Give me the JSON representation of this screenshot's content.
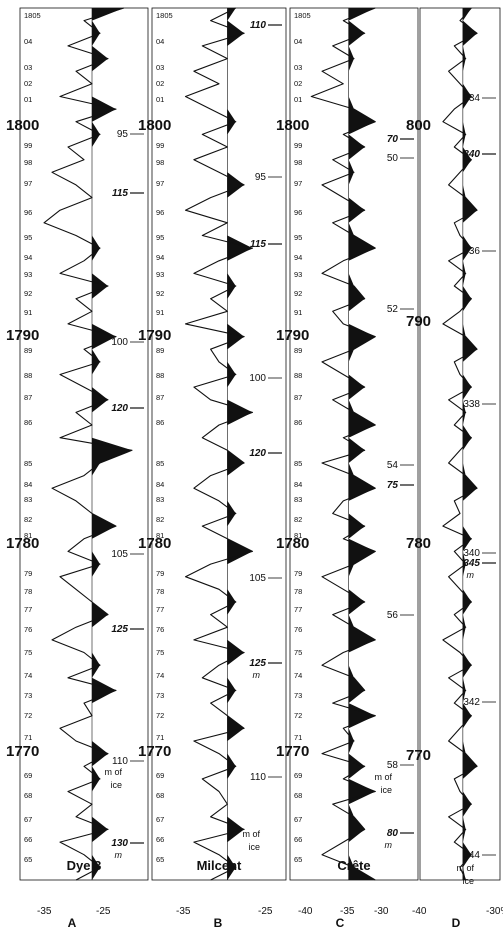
{
  "figure": {
    "background": "#ffffff",
    "ink": "#111111"
  },
  "chart_data": [
    {
      "type": "area",
      "panel": "A",
      "site": "Dye 3",
      "x_ticks": [
        "-35",
        "-25"
      ],
      "year_labels_major": [
        "1800",
        "1790",
        "1780",
        "1770"
      ],
      "year_labels_minor": [
        "1805",
        "04",
        "03",
        "02",
        "01",
        "99",
        "98",
        "97",
        "96",
        "95",
        "94",
        "93",
        "92",
        "91",
        "89",
        "88",
        "87",
        "86",
        "85",
        "84",
        "83",
        "82",
        "81",
        "79",
        "78",
        "77",
        "76",
        "75",
        "74",
        "73",
        "72",
        "71",
        "69",
        "68",
        "67",
        "66",
        "65"
      ],
      "depth_plain": [
        "95",
        "100",
        "105",
        "110"
      ],
      "depth_marks": [
        "115",
        "120",
        "125",
        "130"
      ],
      "depth_units": [
        "m of",
        "ice",
        "m"
      ],
      "series": [
        {
          "values": [
            -25,
            -30,
            -28,
            -32,
            -27,
            -31,
            -29,
            -33,
            -26,
            -31,
            -28,
            -32,
            -30,
            -34,
            -31,
            -29,
            -33,
            -35,
            -31,
            -28,
            -30,
            -33,
            -27,
            -31,
            -29,
            -32,
            -26,
            -30,
            -28,
            -33,
            -30,
            -27,
            -31,
            -29,
            -33,
            -24,
            -28,
            -30,
            -34,
            -31,
            -29,
            -26,
            -30,
            -32,
            -28,
            -33,
            -31,
            -29,
            -27,
            -31,
            -34,
            -30,
            -28,
            -32,
            -26,
            -30,
            -29,
            -33,
            -31,
            -27,
            -30,
            -28,
            -32,
            -29,
            -31,
            -27,
            -33,
            -30,
            -28,
            -31
          ]
        }
      ]
    },
    {
      "type": "area",
      "panel": "B",
      "site": "Milcent",
      "x_ticks": [
        "-35",
        "-25"
      ],
      "year_labels_major": [
        "1800",
        "1790",
        "1780",
        "1770"
      ],
      "year_labels_minor": [
        "1805",
        "04",
        "03",
        "02",
        "01",
        "99",
        "98",
        "97",
        "96",
        "95",
        "94",
        "93",
        "92",
        "91",
        "89",
        "88",
        "87",
        "86",
        "85",
        "84",
        "83",
        "82",
        "81",
        "79",
        "78",
        "77",
        "76",
        "75",
        "74",
        "73",
        "72",
        "71",
        "69",
        "68",
        "67",
        "66",
        "65"
      ],
      "depth_plain": [
        "95",
        "100",
        "105",
        "110"
      ],
      "depth_marks": [
        "110",
        "115",
        "120",
        "125"
      ],
      "depth_units": [
        "m",
        "m of",
        "ice"
      ],
      "series": [
        {
          "values": [
            -28,
            -31,
            -27,
            -32,
            -29,
            -33,
            -30,
            -34,
            -31,
            -28,
            -32,
            -29,
            -33,
            -30,
            -27,
            -31,
            -34,
            -29,
            -32,
            -26,
            -30,
            -33,
            -28,
            -31,
            -29,
            -34,
            -27,
            -31,
            -30,
            -28,
            -33,
            -31,
            -26,
            -30,
            -32,
            -29,
            -27,
            -31,
            -33,
            -30,
            -28,
            -32,
            -29,
            -26,
            -31,
            -34,
            -30,
            -28,
            -31,
            -29,
            -33,
            -27,
            -30,
            -32,
            -28,
            -31,
            -29,
            -27,
            -33,
            -30,
            -28,
            -32,
            -30,
            -29,
            -31,
            -27,
            -33,
            -30,
            -28,
            -31
          ]
        }
      ]
    },
    {
      "type": "area",
      "panel": "C",
      "site": "Crête",
      "x_ticks": [
        "-40",
        "-35",
        "-30"
      ],
      "year_labels_major": [
        "1800",
        "1790",
        "1780",
        "1770"
      ],
      "year_labels_minor": [
        "1805",
        "04",
        "03",
        "02",
        "01",
        "99",
        "98",
        "97",
        "96",
        "95",
        "94",
        "93",
        "92",
        "91",
        "89",
        "88",
        "87",
        "86",
        "85",
        "84",
        "83",
        "82",
        "81",
        "79",
        "78",
        "77",
        "76",
        "75",
        "74",
        "73",
        "72",
        "71",
        "69",
        "68",
        "67",
        "66",
        "65"
      ],
      "depth_plain": [
        "50",
        "52",
        "54",
        "56",
        "58"
      ],
      "depth_marks": [
        "70",
        "75",
        "80"
      ],
      "depth_units": [
        "m of",
        "ice",
        "m"
      ],
      "series": [
        {
          "values": [
            -33,
            -36,
            -34,
            -37,
            -35,
            -38,
            -36,
            -39,
            -35,
            -33,
            -36,
            -34,
            -37,
            -35,
            -38,
            -36,
            -34,
            -37,
            -35,
            -33,
            -36,
            -38,
            -35,
            -34,
            -37,
            -36,
            -33,
            -35,
            -38,
            -36,
            -34,
            -37,
            -35,
            -33,
            -36,
            -34,
            -38,
            -35,
            -33,
            -36,
            -37,
            -34,
            -36,
            -33,
            -35,
            -38,
            -36,
            -34,
            -37,
            -35,
            -33,
            -36,
            -38,
            -35,
            -34,
            -37,
            -33,
            -36,
            -35,
            -38,
            -34,
            -36,
            -33,
            -37,
            -35,
            -34,
            -36,
            -38,
            -35,
            -33
          ]
        }
      ]
    },
    {
      "type": "area",
      "panel": "D",
      "x_ticks": [
        "-40",
        "-30%"
      ],
      "year_labels_major": [
        "800",
        "790",
        "780",
        "770"
      ],
      "depth_plain": [
        "334",
        "336",
        "338",
        "340",
        "342",
        "344"
      ],
      "depth_marks": [
        "340",
        "345"
      ],
      "depth_units": [
        "m",
        "m of",
        "ice"
      ],
      "series": [
        {
          "values": [
            -33,
            -35,
            -32,
            -36,
            -34,
            -37,
            -35,
            -33,
            -36,
            -38,
            -34,
            -36,
            -33,
            -35,
            -37,
            -34,
            -32,
            -36,
            -35,
            -33,
            -37,
            -34,
            -36,
            -33,
            -35,
            -38,
            -34,
            -32,
            -36,
            -35,
            -33,
            -37,
            -34,
            -36,
            -33,
            -35,
            -37,
            -34,
            -32,
            -36,
            -35,
            -38,
            -33,
            -36,
            -34,
            -37,
            -35,
            -33,
            -36,
            -34,
            -38,
            -35,
            -33,
            -37,
            -34,
            -36,
            -33,
            -35,
            -37,
            -34,
            -32,
            -36,
            -35,
            -33,
            -37,
            -34,
            -36,
            -33,
            -35,
            -34
          ]
        }
      ]
    }
  ]
}
